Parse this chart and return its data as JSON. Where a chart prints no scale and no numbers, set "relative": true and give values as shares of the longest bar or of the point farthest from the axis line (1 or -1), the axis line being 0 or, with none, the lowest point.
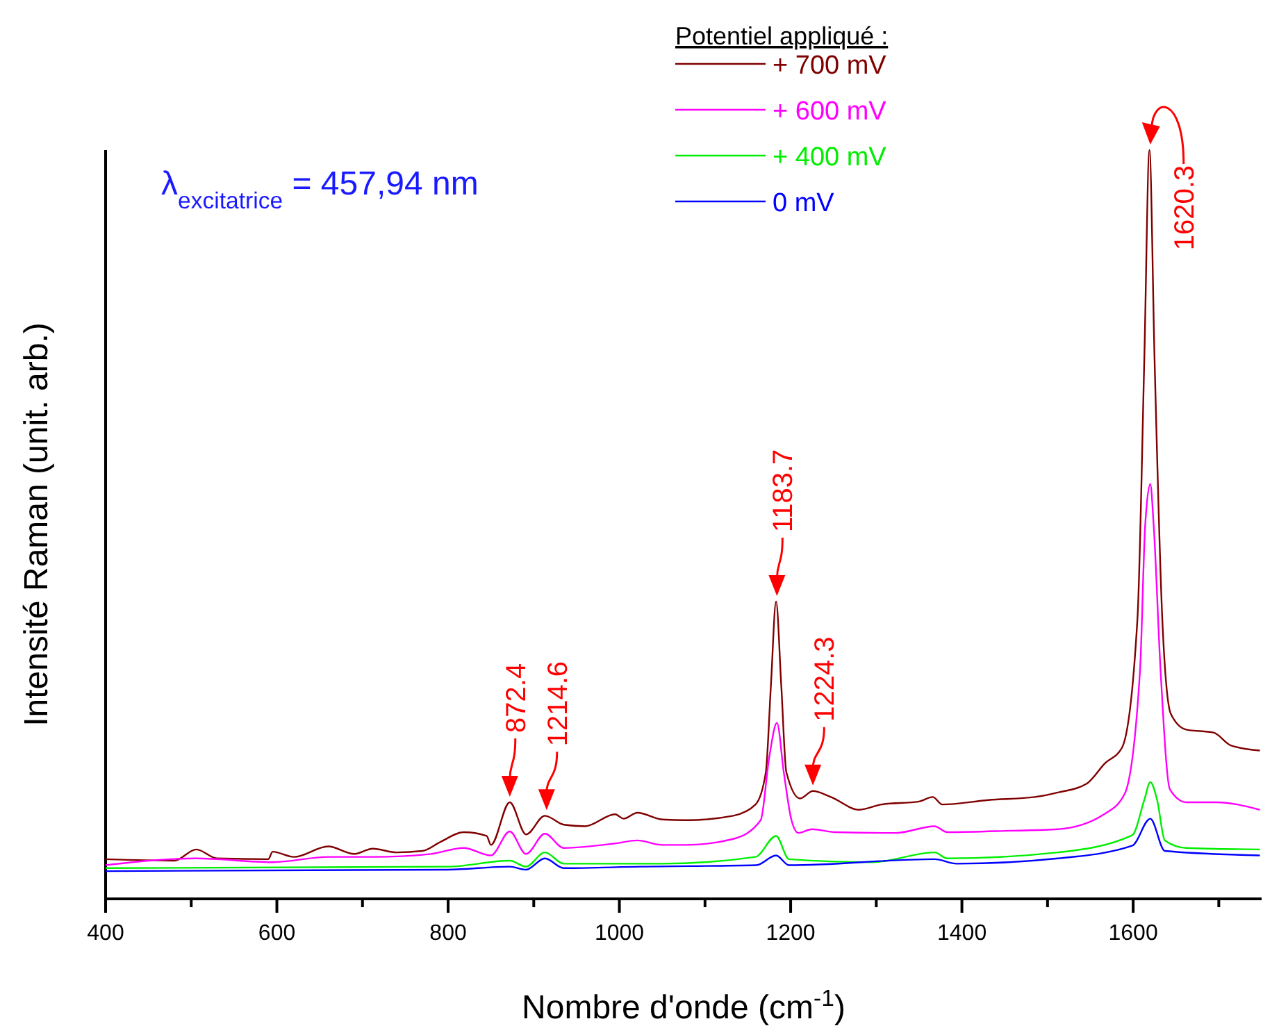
{
  "chart_data": {
    "type": "line",
    "relative": true,
    "xlabel": "Nombre d'onde (cm$^{-1}$)",
    "ylabel": "Intensité Raman (unit. arb.)",
    "legend_title": "Potentiel appliqué :",
    "legend": "top right",
    "grid": false,
    "marker": "none",
    "line_style": "solid",
    "xlim": [
      400,
      1750
    ],
    "xticks": [
      400,
      {
        "value": 500,
        "label": null
      },
      600,
      {
        "value": 700,
        "label": null
      },
      800,
      {
        "value": 900,
        "label": null
      },
      1000,
      {
        "value": 1100,
        "label": null
      },
      1200,
      {
        "value": 1300,
        "label": null
      },
      1400,
      {
        "value": 1500,
        "label": null
      },
      1600,
      {
        "value": 1700,
        "label": null
      }
    ],
    "annotations": [
      "λ$_{excitatrice}$ = 457,94 nm",
      {
        "text": "872.4",
        "x": 872,
        "y": 0.129
      },
      {
        "text": "1214.6",
        "x": 915,
        "y": 0.111
      },
      {
        "text": "1183.7",
        "x": 1184,
        "y": 0.397
      },
      {
        "text": "1224.3",
        "x": 1226,
        "y": 0.144
      },
      {
        "text": "1620.3",
        "x": 1620,
        "y": 1.0
      }
    ],
    "series": [
      {
        "name": "+ 700 mV",
        "color": "#800000",
        "x": [
          400,
          480,
          506,
          530,
          590,
          595,
          620,
          660,
          690,
          712,
          740,
          770,
          791,
          818,
          845,
          850,
          872,
          891,
          913,
          935,
          960,
          995,
          1005,
          1021,
          1050,
          1078,
          1133,
          1159,
          1171,
          1177,
          1183,
          1189,
          1195,
          1211,
          1226,
          1247,
          1280,
          1306,
          1350,
          1366,
          1377,
          1431,
          1485,
          1512,
          1546,
          1567,
          1587,
          1605,
          1613,
          1619,
          1625,
          1634,
          1644,
          1662,
          1694,
          1714,
          1748
        ],
        "values": [
          0.053,
          0.051,
          0.066,
          0.054,
          0.053,
          0.063,
          0.056,
          0.07,
          0.06,
          0.067,
          0.062,
          0.064,
          0.076,
          0.089,
          0.084,
          0.072,
          0.129,
          0.086,
          0.111,
          0.099,
          0.097,
          0.113,
          0.107,
          0.115,
          0.106,
          0.105,
          0.111,
          0.126,
          0.169,
          0.286,
          0.397,
          0.286,
          0.169,
          0.134,
          0.144,
          0.136,
          0.119,
          0.126,
          0.13,
          0.136,
          0.126,
          0.132,
          0.136,
          0.142,
          0.154,
          0.181,
          0.202,
          0.374,
          0.72,
          1.0,
          0.72,
          0.374,
          0.247,
          0.226,
          0.222,
          0.205,
          0.198
        ]
      },
      {
        "name": "+ 600 mV",
        "color": "#ff00ff",
        "x": [
          400,
          506,
          595,
          660,
          712,
          780,
          818,
          850,
          872,
          891,
          913,
          935,
          995,
          1021,
          1050,
          1078,
          1133,
          1165,
          1175,
          1184,
          1192,
          1201,
          1209,
          1225,
          1252,
          1323,
          1368,
          1383,
          1458,
          1512,
          1566,
          1590,
          1608,
          1614,
          1620,
          1624,
          1632,
          1643,
          1662,
          1697,
          1748
        ],
        "values": [
          0.045,
          0.054,
          0.049,
          0.056,
          0.056,
          0.06,
          0.068,
          0.058,
          0.09,
          0.06,
          0.087,
          0.068,
          0.074,
          0.078,
          0.072,
          0.072,
          0.08,
          0.105,
          0.189,
          0.235,
          0.169,
          0.105,
          0.088,
          0.093,
          0.089,
          0.088,
          0.097,
          0.089,
          0.091,
          0.093,
          0.113,
          0.14,
          0.305,
          0.498,
          0.554,
          0.498,
          0.305,
          0.146,
          0.129,
          0.129,
          0.119
        ]
      },
      {
        "name": "+ 400 mV",
        "color": "#00ee00",
        "x": [
          400,
          800,
          872,
          891,
          913,
          935,
          1050,
          1159,
          1183,
          1198,
          1296,
          1368,
          1383,
          1512,
          1599,
          1613,
          1620,
          1628,
          1637,
          1662,
          1748
        ],
        "values": [
          0.041,
          0.043,
          0.051,
          0.043,
          0.062,
          0.047,
          0.047,
          0.056,
          0.084,
          0.053,
          0.049,
          0.062,
          0.054,
          0.062,
          0.085,
          0.132,
          0.156,
          0.132,
          0.078,
          0.068,
          0.066
        ]
      },
      {
        "name": "0 mV",
        "color": "#0000ff",
        "x": [
          400,
          800,
          872,
          891,
          913,
          935,
          1024,
          1160,
          1183,
          1198,
          1368,
          1394,
          1512,
          1599,
          1620,
          1637,
          1748
        ],
        "values": [
          0.037,
          0.039,
          0.043,
          0.039,
          0.054,
          0.041,
          0.043,
          0.045,
          0.058,
          0.045,
          0.053,
          0.047,
          0.054,
          0.071,
          0.107,
          0.064,
          0.058
        ]
      }
    ]
  }
}
